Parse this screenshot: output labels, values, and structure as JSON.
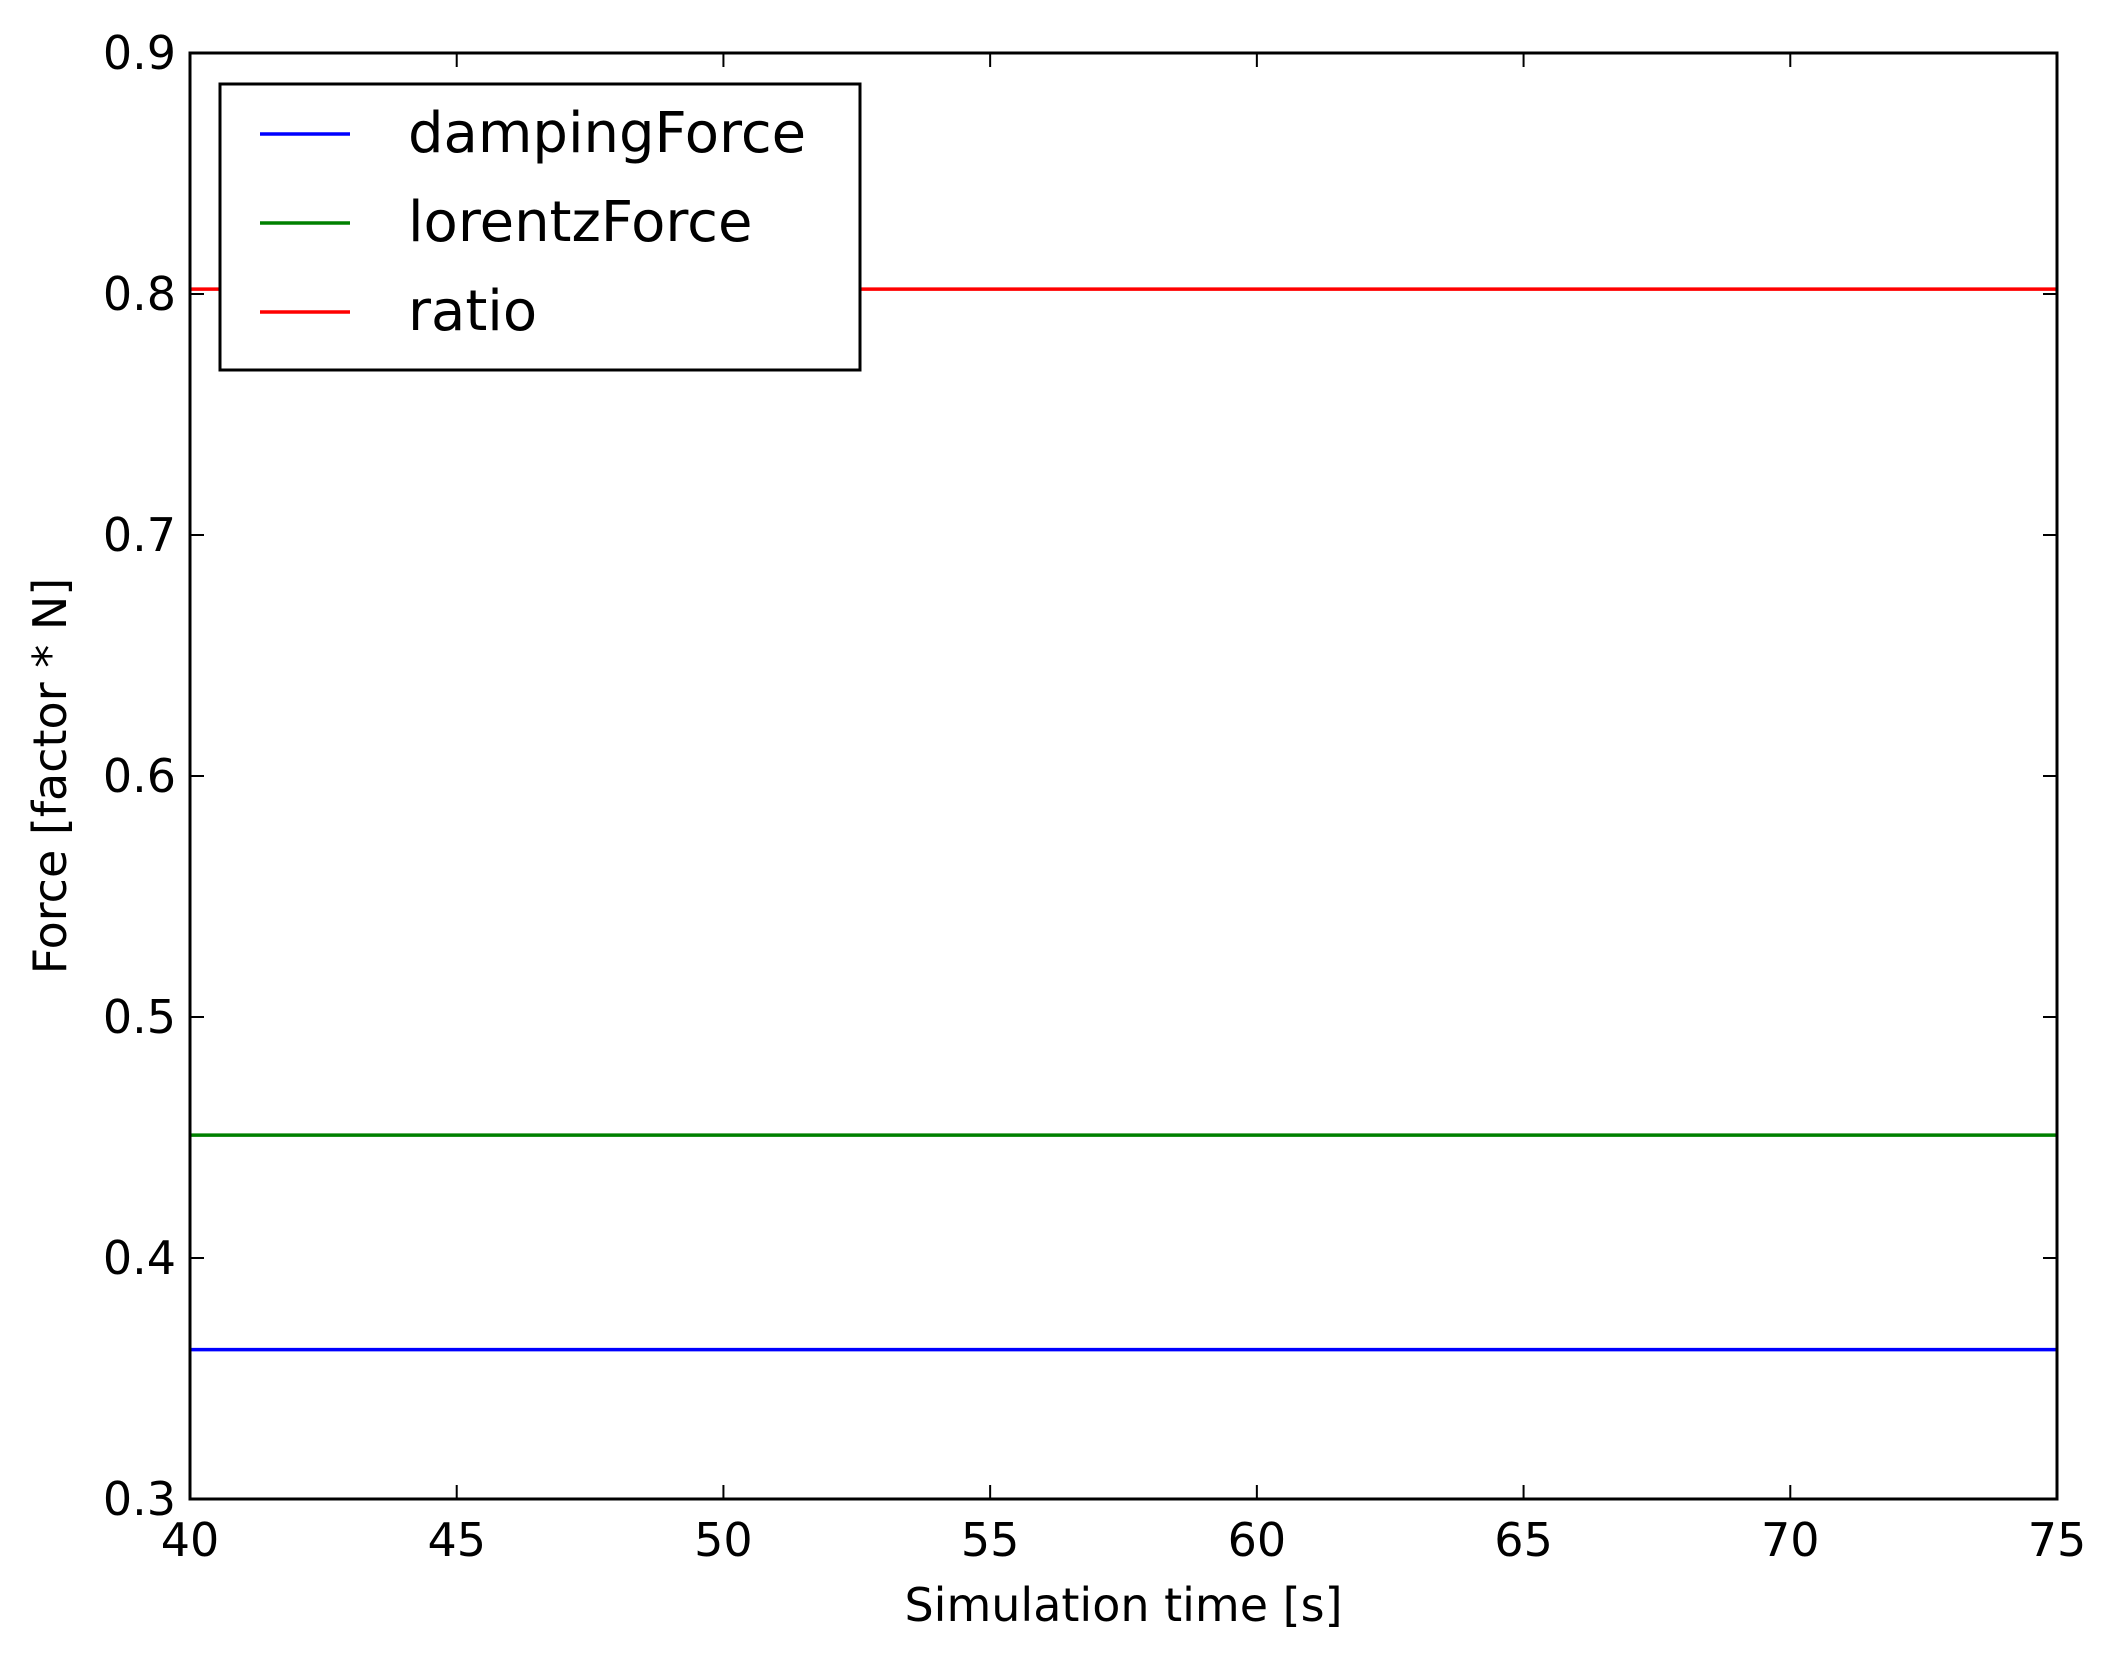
{
  "chart_data": {
    "type": "line",
    "title": "",
    "xlabel": "Simulation time [s]",
    "ylabel": "Force [factor * N]",
    "xlim": [
      40,
      75
    ],
    "ylim": [
      0.3,
      0.9
    ],
    "x_ticks": [
      40,
      45,
      50,
      55,
      60,
      65,
      70,
      75
    ],
    "y_ticks": [
      0.3,
      0.4,
      0.5,
      0.6,
      0.7,
      0.8,
      0.9
    ],
    "x_tick_labels": [
      "40",
      "45",
      "50",
      "55",
      "60",
      "65",
      "70",
      "75"
    ],
    "y_tick_labels": [
      "0.3",
      "0.4",
      "0.5",
      "0.6",
      "0.7",
      "0.8",
      "0.9"
    ],
    "grid": false,
    "legend_position": "top-left",
    "series": [
      {
        "name": "dampingForce",
        "color": "#0000ff",
        "x": [
          40,
          75
        ],
        "y": [
          0.362,
          0.362
        ]
      },
      {
        "name": "lorentzForce",
        "color": "#008000",
        "x": [
          40,
          75
        ],
        "y": [
          0.451,
          0.451
        ]
      },
      {
        "name": "ratio",
        "color": "#ff0000",
        "x": [
          40,
          75
        ],
        "y": [
          0.802,
          0.802
        ]
      }
    ]
  }
}
